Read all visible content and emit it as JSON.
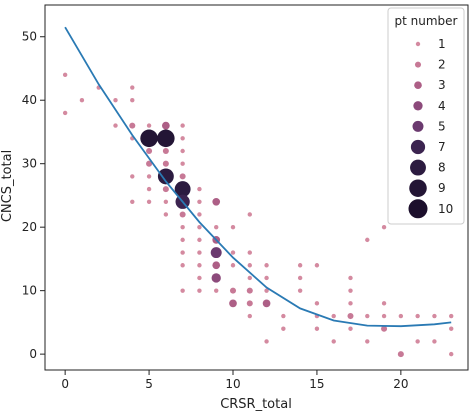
{
  "chart_data": {
    "type": "scatter",
    "xlabel": "CRSR_total",
    "ylabel": "CNCS_total",
    "xlim": [
      -1.2,
      24.0
    ],
    "ylim": [
      -2.5,
      55.0
    ],
    "x_ticks": [
      0,
      5,
      10,
      15,
      20
    ],
    "y_ticks": [
      0,
      10,
      20,
      30,
      40,
      50
    ],
    "grid": false,
    "legend": {
      "title": "pt number",
      "placement": "top-right",
      "entries": [
        "1",
        "2",
        "3",
        "4",
        "5",
        "7",
        "8",
        "9",
        "10"
      ]
    },
    "point_colors": {
      "1": "#d48aa0",
      "2": "#c77996",
      "3": "#ad5f86",
      "4": "#8c4a7b",
      "5": "#6b3a6f",
      "7": "#3c2450",
      "8": "#2c1b40",
      "9": "#231535",
      "10": "#1c0f2c"
    },
    "points": [
      {
        "x": 0,
        "y": 44,
        "pt": 1
      },
      {
        "x": 0,
        "y": 38,
        "pt": 1
      },
      {
        "x": 1,
        "y": 40,
        "pt": 1
      },
      {
        "x": 2,
        "y": 42,
        "pt": 1
      },
      {
        "x": 3,
        "y": 40,
        "pt": 1
      },
      {
        "x": 3,
        "y": 36,
        "pt": 1
      },
      {
        "x": 4,
        "y": 42,
        "pt": 1
      },
      {
        "x": 4,
        "y": 40,
        "pt": 1
      },
      {
        "x": 4,
        "y": 36,
        "pt": 2
      },
      {
        "x": 4,
        "y": 34,
        "pt": 1
      },
      {
        "x": 4,
        "y": 28,
        "pt": 1
      },
      {
        "x": 4,
        "y": 24,
        "pt": 1
      },
      {
        "x": 5,
        "y": 36,
        "pt": 1
      },
      {
        "x": 5,
        "y": 34,
        "pt": 9
      },
      {
        "x": 5,
        "y": 32,
        "pt": 2
      },
      {
        "x": 5,
        "y": 30,
        "pt": 2
      },
      {
        "x": 5,
        "y": 28,
        "pt": 1
      },
      {
        "x": 5,
        "y": 26,
        "pt": 1
      },
      {
        "x": 5,
        "y": 24,
        "pt": 1
      },
      {
        "x": 6,
        "y": 36,
        "pt": 3
      },
      {
        "x": 6,
        "y": 34,
        "pt": 9
      },
      {
        "x": 6,
        "y": 32,
        "pt": 2
      },
      {
        "x": 6,
        "y": 30,
        "pt": 2
      },
      {
        "x": 6,
        "y": 28,
        "pt": 8
      },
      {
        "x": 6,
        "y": 26,
        "pt": 2
      },
      {
        "x": 6,
        "y": 24,
        "pt": 1
      },
      {
        "x": 6,
        "y": 22,
        "pt": 1
      },
      {
        "x": 7,
        "y": 36,
        "pt": 1
      },
      {
        "x": 7,
        "y": 34,
        "pt": 1
      },
      {
        "x": 7,
        "y": 32,
        "pt": 1
      },
      {
        "x": 7,
        "y": 30,
        "pt": 1
      },
      {
        "x": 7,
        "y": 28,
        "pt": 2
      },
      {
        "x": 7,
        "y": 26,
        "pt": 8
      },
      {
        "x": 7,
        "y": 24,
        "pt": 7
      },
      {
        "x": 7,
        "y": 22,
        "pt": 2
      },
      {
        "x": 7,
        "y": 20,
        "pt": 1
      },
      {
        "x": 7,
        "y": 18,
        "pt": 1
      },
      {
        "x": 7,
        "y": 16,
        "pt": 1
      },
      {
        "x": 7,
        "y": 14,
        "pt": 1
      },
      {
        "x": 7,
        "y": 10,
        "pt": 1
      },
      {
        "x": 8,
        "y": 26,
        "pt": 1
      },
      {
        "x": 8,
        "y": 24,
        "pt": 1
      },
      {
        "x": 8,
        "y": 22,
        "pt": 1
      },
      {
        "x": 8,
        "y": 20,
        "pt": 1
      },
      {
        "x": 8,
        "y": 18,
        "pt": 1
      },
      {
        "x": 8,
        "y": 16,
        "pt": 1
      },
      {
        "x": 8,
        "y": 14,
        "pt": 1
      },
      {
        "x": 8,
        "y": 12,
        "pt": 1
      },
      {
        "x": 8,
        "y": 10,
        "pt": 1
      },
      {
        "x": 9,
        "y": 24,
        "pt": 3
      },
      {
        "x": 9,
        "y": 20,
        "pt": 1
      },
      {
        "x": 9,
        "y": 18,
        "pt": 3
      },
      {
        "x": 9,
        "y": 16,
        "pt": 5
      },
      {
        "x": 9,
        "y": 14,
        "pt": 3
      },
      {
        "x": 9,
        "y": 12,
        "pt": 4
      },
      {
        "x": 9,
        "y": 10,
        "pt": 1
      },
      {
        "x": 10,
        "y": 20,
        "pt": 1
      },
      {
        "x": 10,
        "y": 16,
        "pt": 1
      },
      {
        "x": 10,
        "y": 14,
        "pt": 1
      },
      {
        "x": 10,
        "y": 10,
        "pt": 2
      },
      {
        "x": 10,
        "y": 8,
        "pt": 3
      },
      {
        "x": 11,
        "y": 22,
        "pt": 1
      },
      {
        "x": 11,
        "y": 16,
        "pt": 1
      },
      {
        "x": 11,
        "y": 14,
        "pt": 1
      },
      {
        "x": 11,
        "y": 12,
        "pt": 1
      },
      {
        "x": 11,
        "y": 10,
        "pt": 2
      },
      {
        "x": 11,
        "y": 8,
        "pt": 2
      },
      {
        "x": 11,
        "y": 6,
        "pt": 1
      },
      {
        "x": 12,
        "y": 14,
        "pt": 1
      },
      {
        "x": 12,
        "y": 12,
        "pt": 1
      },
      {
        "x": 12,
        "y": 10,
        "pt": 1
      },
      {
        "x": 12,
        "y": 8,
        "pt": 3
      },
      {
        "x": 12,
        "y": 2,
        "pt": 1
      },
      {
        "x": 13,
        "y": 6,
        "pt": 1
      },
      {
        "x": 13,
        "y": 4,
        "pt": 1
      },
      {
        "x": 14,
        "y": 14,
        "pt": 1
      },
      {
        "x": 14,
        "y": 12,
        "pt": 1
      },
      {
        "x": 14,
        "y": 10,
        "pt": 1
      },
      {
        "x": 15,
        "y": 14,
        "pt": 1
      },
      {
        "x": 15,
        "y": 8,
        "pt": 1
      },
      {
        "x": 15,
        "y": 6,
        "pt": 1
      },
      {
        "x": 15,
        "y": 4,
        "pt": 1
      },
      {
        "x": 16,
        "y": 6,
        "pt": 1
      },
      {
        "x": 16,
        "y": 2,
        "pt": 1
      },
      {
        "x": 17,
        "y": 12,
        "pt": 1
      },
      {
        "x": 17,
        "y": 10,
        "pt": 1
      },
      {
        "x": 17,
        "y": 8,
        "pt": 1
      },
      {
        "x": 17,
        "y": 6,
        "pt": 2
      },
      {
        "x": 17,
        "y": 4,
        "pt": 1
      },
      {
        "x": 18,
        "y": 18,
        "pt": 1
      },
      {
        "x": 18,
        "y": 6,
        "pt": 1
      },
      {
        "x": 18,
        "y": 2,
        "pt": 1
      },
      {
        "x": 19,
        "y": 20,
        "pt": 1
      },
      {
        "x": 19,
        "y": 8,
        "pt": 1
      },
      {
        "x": 19,
        "y": 6,
        "pt": 1
      },
      {
        "x": 19,
        "y": 4,
        "pt": 2
      },
      {
        "x": 20,
        "y": 6,
        "pt": 1
      },
      {
        "x": 20,
        "y": 0,
        "pt": 2
      },
      {
        "x": 21,
        "y": 6,
        "pt": 1
      },
      {
        "x": 21,
        "y": 2,
        "pt": 1
      },
      {
        "x": 22,
        "y": 6,
        "pt": 1
      },
      {
        "x": 22,
        "y": 2,
        "pt": 1
      },
      {
        "x": 23,
        "y": 6,
        "pt": 1
      },
      {
        "x": 23,
        "y": 4,
        "pt": 1
      },
      {
        "x": 23,
        "y": 0,
        "pt": 1
      }
    ],
    "fit_line": {
      "color": "#2a7ab4",
      "x": [
        0,
        2,
        4,
        6,
        8,
        10,
        12,
        14,
        16,
        18,
        20,
        22,
        23
      ],
      "y": [
        51.5,
        42.5,
        34.5,
        27.2,
        20.8,
        15.2,
        10.5,
        7.2,
        5.3,
        4.5,
        4.4,
        4.7,
        5.0
      ]
    }
  }
}
